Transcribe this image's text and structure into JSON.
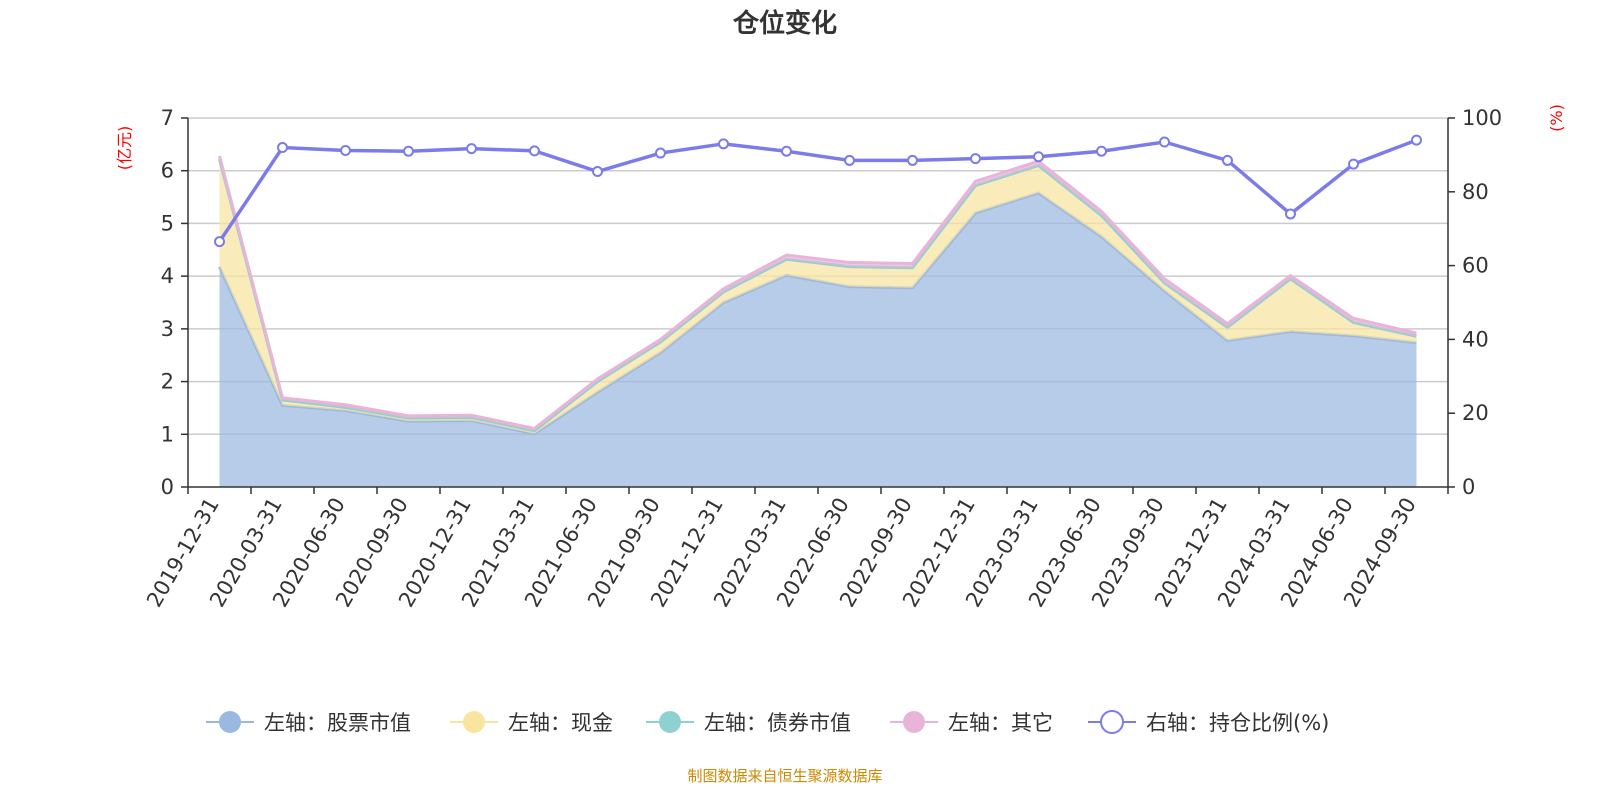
{
  "title": "仓位变化",
  "source": "制图数据来自恒生聚源数据库",
  "chart_data": {
    "type": "area",
    "title": "仓位变化",
    "x": [
      "2019-12-31",
      "2020-03-31",
      "2020-06-30",
      "2020-09-30",
      "2020-12-31",
      "2021-03-31",
      "2021-06-30",
      "2021-09-30",
      "2021-12-31",
      "2022-03-31",
      "2022-06-30",
      "2022-09-30",
      "2022-12-31",
      "2023-03-31",
      "2023-06-30",
      "2023-09-30",
      "2023-12-31",
      "2024-03-31",
      "2024-06-30",
      "2024-09-30"
    ],
    "left_axis": {
      "unit": "(亿元)",
      "ylim": [
        0,
        7
      ],
      "ticks": [
        "0",
        "1",
        "2",
        "3",
        "4",
        "5",
        "6",
        "7"
      ]
    },
    "right_axis": {
      "unit": "(%)",
      "ylim": [
        0,
        100
      ],
      "ticks": [
        "0",
        "20",
        "40",
        "60",
        "80",
        "100"
      ]
    },
    "grid": true,
    "legend_position": "bottom",
    "series": [
      {
        "name": "左轴：股票市值",
        "axis": "left",
        "kind": "area",
        "color": "#9bb8e0",
        "values": [
          4.18,
          1.55,
          1.45,
          1.25,
          1.26,
          1.01,
          1.8,
          2.55,
          3.5,
          4.02,
          3.8,
          3.78,
          5.2,
          5.58,
          4.75,
          3.72,
          2.78,
          2.95,
          2.87,
          2.74
        ]
      },
      {
        "name": "左轴：现金",
        "axis": "left",
        "kind": "area",
        "color": "#f8e5a0",
        "values": [
          2.04,
          0.1,
          0.06,
          0.06,
          0.06,
          0.06,
          0.2,
          0.2,
          0.2,
          0.3,
          0.38,
          0.38,
          0.52,
          0.52,
          0.4,
          0.15,
          0.25,
          1.0,
          0.25,
          0.12
        ]
      },
      {
        "name": "左轴：债券市值",
        "axis": "left",
        "kind": "area",
        "color": "#8fd1d1",
        "values": [
          0,
          0,
          0,
          0,
          0,
          0,
          0,
          0,
          0,
          0,
          0,
          0,
          0,
          0,
          0,
          0,
          0,
          0,
          0,
          0
        ]
      },
      {
        "name": "左轴：其它",
        "axis": "left",
        "kind": "area",
        "color": "#e8b4d8",
        "values": [
          0.06,
          0.04,
          0.05,
          0.04,
          0.04,
          0.04,
          0.05,
          0.05,
          0.06,
          0.08,
          0.08,
          0.08,
          0.08,
          0.08,
          0.08,
          0.08,
          0.07,
          0.06,
          0.08,
          0.06
        ]
      },
      {
        "name": "右轴：持仓比例(%)",
        "axis": "right",
        "kind": "line",
        "color": "#7b7bea",
        "values": [
          66.5,
          92.0,
          91.2,
          91.0,
          91.7,
          91.1,
          85.5,
          90.5,
          93.0,
          91.0,
          88.5,
          88.5,
          89.0,
          89.5,
          91.0,
          93.5,
          88.5,
          74.0,
          87.5,
          94.0
        ]
      }
    ]
  }
}
